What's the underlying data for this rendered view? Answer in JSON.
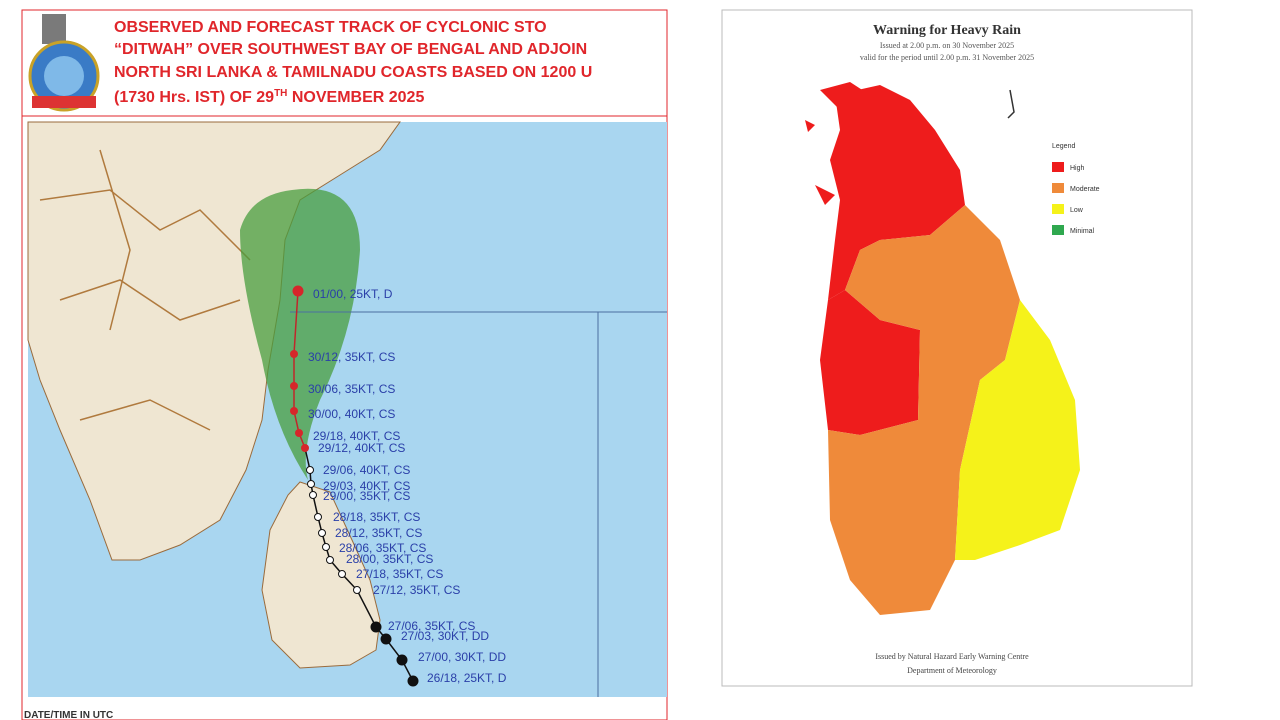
{
  "left_panel": {
    "title_lines": [
      "OBSERVED AND FORECAST TRACK OF CYCLONIC STO",
      "“DITWAH” OVER SOUTHWEST BAY OF BENGAL AND ADJOIN",
      "NORTH SRI LANKA & TAMILNADU COASTS BASED ON 1200 U"
    ],
    "title_last": {
      "before": "(1730 Hrs. IST) OF 29",
      "sup": "TH",
      "after": " NOVEMBER 2025"
    },
    "track_labels": [
      "01/00, 25KT, D",
      "30/12, 35KT, CS",
      "30/06, 35KT, CS",
      "30/00, 40KT, CS",
      "29/18, 40KT, CS",
      "29/12, 40KT, CS",
      "29/06, 40KT, CS",
      "29/03, 40KT, CS",
      "29/00, 35KT, CS",
      "28/18, 35KT, CS",
      "28/12, 35KT, CS",
      "28/06, 35KT, CS",
      "28/00, 35KT, CS",
      "27/18, 35KT, CS",
      "27/12, 35KT, CS",
      "27/06, 35KT, CS",
      "27/03, 30KT, DD",
      "27/00, 30KT, DD",
      "26/18, 25KT, D"
    ],
    "footer": "DATE/TIME IN UTC"
  },
  "right_panel": {
    "title": "Warning for Heavy Rain",
    "subtitle_lines": [
      "Issued at 2.00 p.m. on 30 November 2025",
      "valid for the period until 2.00 p.m. 31 November 2025"
    ],
    "legend_title": "Legend",
    "legend": [
      "High",
      "Moderate",
      "Low",
      "Minimal"
    ],
    "footer_lines": [
      "Issued by Natural Hazard Early Warning Centre",
      "Department of Meteorology"
    ]
  }
}
